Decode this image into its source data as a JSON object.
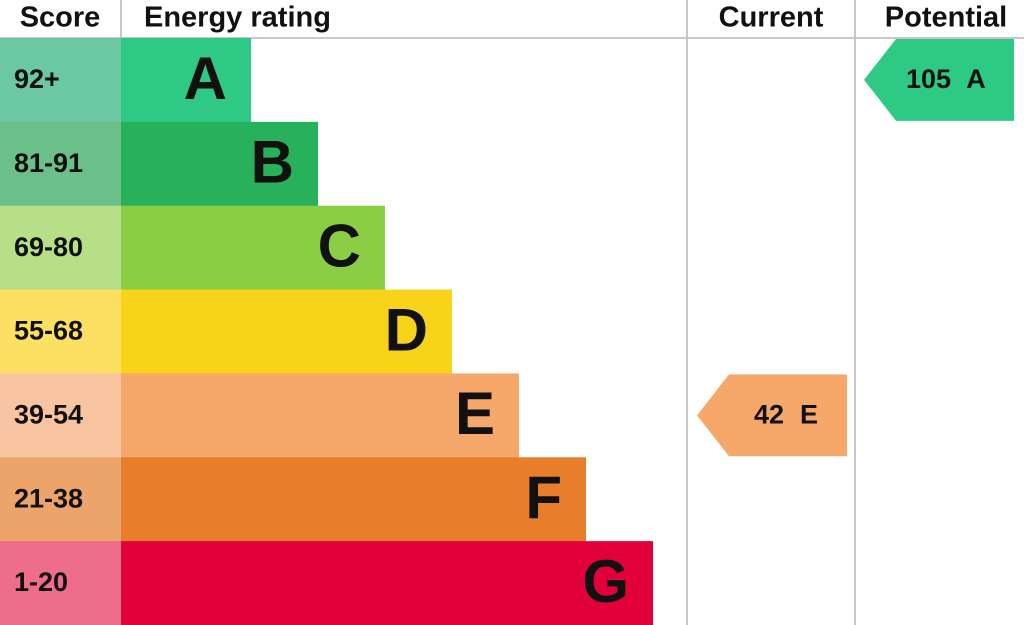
{
  "header": {
    "score": "Score",
    "rating": "Energy rating",
    "current": "Current",
    "potential": "Potential"
  },
  "bands": [
    {
      "score": "92+",
      "letter": "A",
      "color": "#2fc986",
      "score_color": "#6cc8a2"
    },
    {
      "score": "81-91",
      "letter": "B",
      "color": "#27b15a",
      "score_color": "#6bbf88"
    },
    {
      "score": "69-80",
      "letter": "C",
      "color": "#8ccd46",
      "score_color": "#b6df87"
    },
    {
      "score": "55-68",
      "letter": "D",
      "color": "#f9d21a",
      "score_color": "#fbe062"
    },
    {
      "score": "39-54",
      "letter": "E",
      "color": "#f5a86a",
      "score_color": "#f8c5a0"
    },
    {
      "score": "21-38",
      "letter": "F",
      "color": "#e87d2b",
      "score_color": "#eda46b"
    },
    {
      "score": "1-20",
      "letter": "G",
      "color": "#e2003b",
      "score_color": "#ee6d8a"
    }
  ],
  "current": {
    "value": 42,
    "letter": "E"
  },
  "potential": {
    "value": 105,
    "letter": "A"
  }
}
